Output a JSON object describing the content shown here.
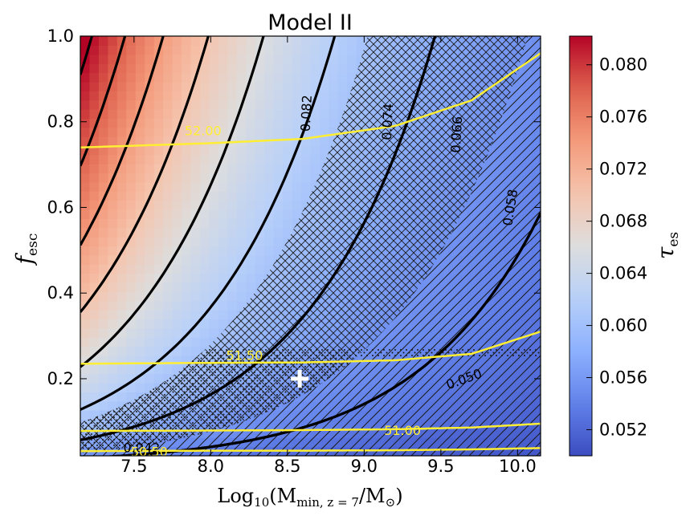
{
  "chart_data": {
    "type": "heatmap",
    "title": "Model II",
    "xlabel": "Log10(Mmin, z=7/M⊙)",
    "xlabel_main": "Log",
    "xlabel_sub_log": "10",
    "xlabel_paren_open": "(M",
    "xlabel_sub_m": "min, z = 7",
    "xlabel_over": "/M",
    "xlabel_sun": "⊙",
    "xlabel_paren_close": ")",
    "ylabel": "fesc",
    "ylabel_main": "f",
    "ylabel_sub": "esc",
    "xlim": [
      7.15,
      10.15
    ],
    "ylim": [
      0.02,
      1.0
    ],
    "xticks": [
      "7.5",
      "8.0",
      "8.5",
      "9.0",
      "9.5",
      "10.0"
    ],
    "yticks": [
      "0.2",
      "0.4",
      "0.6",
      "0.8",
      "1.0"
    ],
    "colorbar": {
      "label": "τes",
      "label_main": "τ",
      "label_sub": "es",
      "range": [
        0.05,
        0.0822
      ],
      "ticks": [
        "0.052",
        "0.056",
        "0.060",
        "0.064",
        "0.068",
        "0.072",
        "0.076",
        "0.080"
      ],
      "cmap": "coolwarm"
    },
    "tau_contours": [
      {
        "level": 0.082,
        "label": "0.082",
        "label_at": [
          8.62,
          0.82
        ]
      },
      {
        "level": 0.074,
        "label": "0.074",
        "label_at": [
          9.15,
          0.8
        ]
      },
      {
        "level": 0.066,
        "label": "0.066",
        "label_at": [
          9.6,
          0.77
        ]
      },
      {
        "level": 0.058,
        "label": "0.058",
        "label_at": [
          9.95,
          0.6
        ]
      },
      {
        "level": 0.05,
        "label": "0.050",
        "label_at": [
          9.65,
          0.2
        ]
      },
      {
        "level": 0.042,
        "label": "0.042",
        "label_at": [
          7.55,
          0.04
        ]
      }
    ],
    "extra_tau_contours": [
      0.046,
      0.054,
      0.062,
      0.07,
      0.078
    ],
    "yellow_contours": [
      {
        "label": "52.00",
        "x": [
          7.15,
          8.0,
          8.6,
          9.2,
          9.7,
          10.15
        ],
        "y": [
          0.74,
          0.75,
          0.76,
          0.79,
          0.85,
          0.96
        ]
      },
      {
        "label": "51.50",
        "x": [
          7.15,
          8.0,
          8.6,
          9.2,
          9.7,
          10.15
        ],
        "y": [
          0.235,
          0.237,
          0.238,
          0.243,
          0.258,
          0.31
        ]
      },
      {
        "label": "51.00",
        "x": [
          7.15,
          8.0,
          8.6,
          9.2,
          9.7,
          10.15
        ],
        "y": [
          0.078,
          0.079,
          0.08,
          0.082,
          0.086,
          0.095
        ]
      },
      {
        "label": "50.50",
        "x": [
          7.15,
          8.0,
          8.6,
          9.2,
          9.7,
          10.15
        ],
        "y": [
          0.031,
          0.032,
          0.032,
          0.033,
          0.035,
          0.038
        ]
      }
    ],
    "marker": {
      "symbol": "+",
      "x": 8.58,
      "y": 0.2,
      "color": "#ffffff"
    },
    "grid": false
  }
}
